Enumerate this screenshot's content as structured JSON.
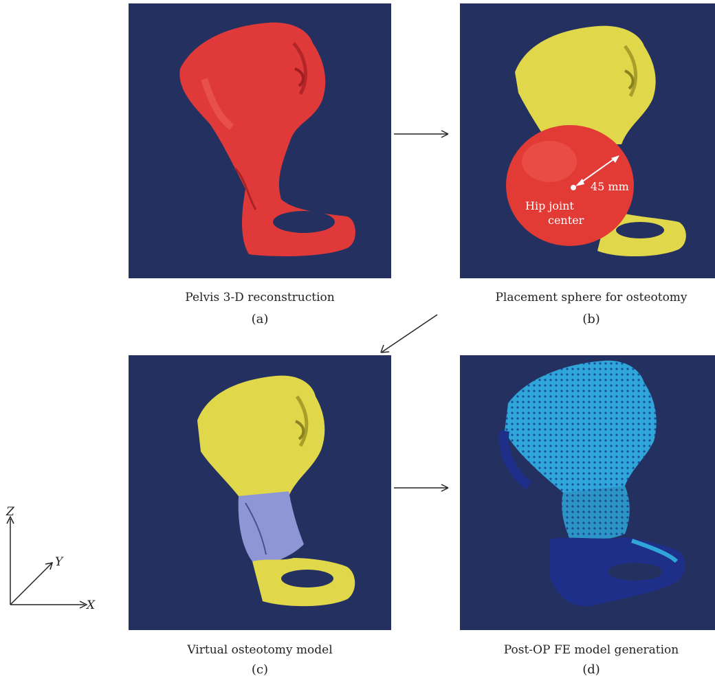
{
  "panels": {
    "a": {
      "caption": "Pelvis 3-D reconstruction",
      "label": "(a)"
    },
    "b": {
      "caption": "Placement sphere for osteotomy",
      "label": "(b)",
      "annotations": {
        "radius": "45 mm",
        "center_line1": "Hip joint",
        "center_line2": "center"
      }
    },
    "c": {
      "caption": "Virtual osteotomy model",
      "label": "(c)"
    },
    "d": {
      "caption": "Post-OP FE model generation",
      "label": "(d)"
    }
  },
  "axes": {
    "z": "Z",
    "y": "Y",
    "x": "X"
  },
  "colors": {
    "background": "#243160",
    "bone_red": "#e0393a",
    "bone_yellow": "#e0d84a",
    "osteotomy_segment": "#8f96d6",
    "fe_mesh": "#2fa5d8",
    "fe_dark": "#1e2f8a"
  }
}
